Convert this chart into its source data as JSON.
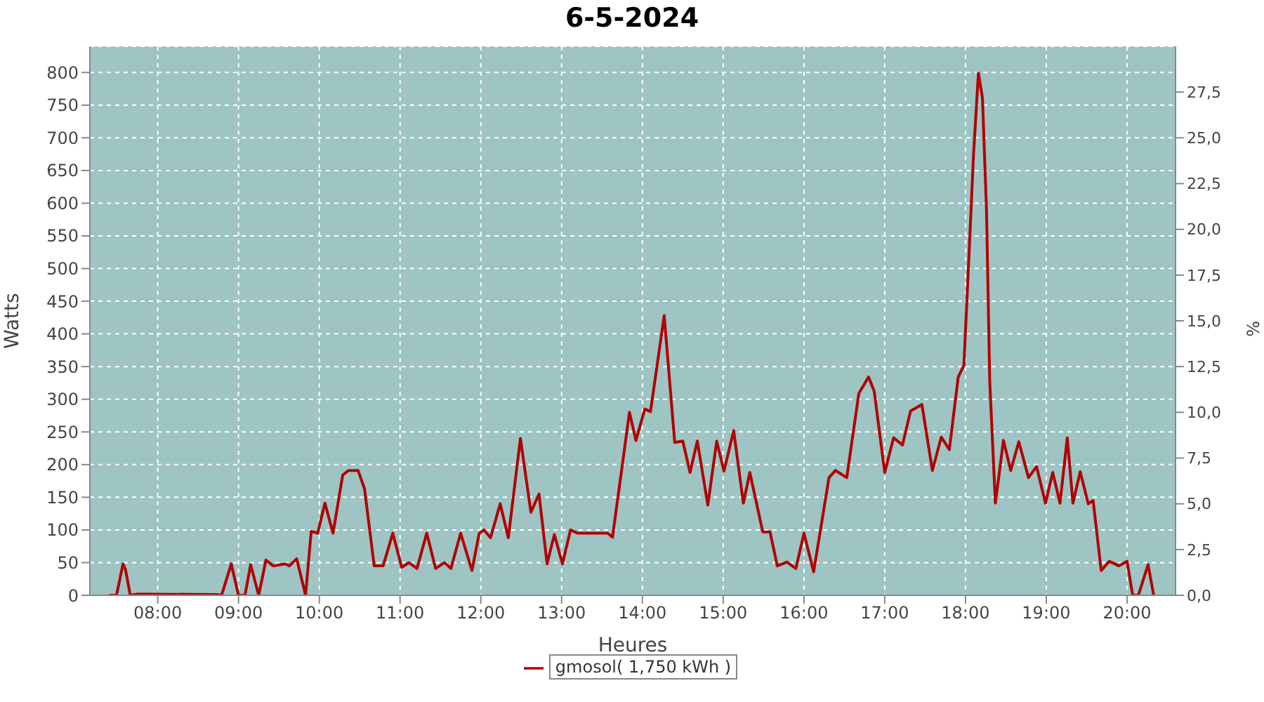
{
  "chart_data": {
    "type": "line",
    "title": "6-5-2024",
    "xlabel": "Heures",
    "ylabel": "Watts",
    "y2label": "%",
    "x": [
      7.4,
      7.49,
      7.57,
      7.6,
      7.66,
      7.75,
      8.74,
      8.79,
      8.91,
      9.0,
      9.08,
      9.15,
      9.25,
      9.34,
      9.43,
      9.58,
      9.63,
      9.72,
      9.83,
      9.9,
      9.98,
      10.07,
      10.17,
      10.29,
      10.36,
      10.48,
      10.56,
      10.68,
      10.79,
      10.91,
      11.02,
      11.11,
      11.21,
      11.33,
      11.44,
      11.55,
      11.63,
      11.75,
      11.89,
      11.98,
      12.04,
      12.12,
      12.24,
      12.34,
      12.49,
      12.62,
      12.72,
      12.82,
      12.91,
      13.01,
      13.11,
      13.2,
      13.57,
      13.63,
      13.84,
      13.92,
      14.03,
      14.1,
      14.27,
      14.4,
      14.5,
      14.59,
      14.68,
      14.81,
      14.92,
      15.01,
      15.13,
      15.25,
      15.33,
      15.49,
      15.58,
      15.67,
      15.79,
      15.9,
      16.0,
      16.12,
      16.31,
      16.39,
      16.53,
      16.68,
      16.8,
      16.87,
      17.0,
      17.11,
      17.22,
      17.32,
      17.46,
      17.59,
      17.7,
      17.8,
      17.91,
      17.98,
      18.04,
      18.1,
      18.16,
      18.21,
      18.26,
      18.3,
      18.37,
      18.47,
      18.56,
      18.66,
      18.78,
      18.88,
      18.99,
      19.08,
      19.17,
      19.26,
      19.33,
      19.42,
      19.52,
      19.58,
      19.68,
      19.78,
      19.9,
      20.0,
      20.07,
      20.14,
      20.26,
      20.33
    ],
    "series": [
      {
        "name": "gmosol( 1,750 kWh )",
        "color": "#b00000",
        "values": [
          0,
          0,
          48,
          40,
          0,
          2,
          1,
          0,
          48,
          0,
          0,
          47,
          0,
          54,
          45,
          48,
          45,
          56,
          0,
          98,
          95,
          141,
          95,
          184,
          191,
          191,
          163,
          45,
          45,
          95,
          43,
          50,
          41,
          95,
          41,
          50,
          41,
          95,
          38,
          95,
          100,
          88,
          140,
          88,
          240,
          127,
          155,
          48,
          93,
          48,
          100,
          95,
          95,
          89,
          280,
          237,
          285,
          281,
          428,
          234,
          236,
          188,
          236,
          138,
          236,
          190,
          252,
          141,
          188,
          97,
          97,
          45,
          51,
          41,
          95,
          36,
          180,
          191,
          180,
          309,
          334,
          312,
          188,
          241,
          230,
          282,
          292,
          191,
          242,
          223,
          334,
          352,
          512,
          676,
          799,
          761,
          590,
          327,
          141,
          237,
          191,
          235,
          180,
          197,
          141,
          188,
          141,
          241,
          141,
          189,
          140,
          145,
          38,
          52,
          45,
          52,
          0,
          0,
          47,
          0
        ]
      }
    ],
    "xlim": [
      7.16,
      20.6
    ],
    "xticks": [
      {
        "value": 8,
        "label": "08:00"
      },
      {
        "value": 9,
        "label": "09:00"
      },
      {
        "value": 10,
        "label": "10:00"
      },
      {
        "value": 11,
        "label": "11:00"
      },
      {
        "value": 12,
        "label": "12:00"
      },
      {
        "value": 13,
        "label": "13:00"
      },
      {
        "value": 14,
        "label": "14:00"
      },
      {
        "value": 15,
        "label": "15:00"
      },
      {
        "value": 16,
        "label": "16:00"
      },
      {
        "value": 17,
        "label": "17:00"
      },
      {
        "value": 18,
        "label": "18:00"
      },
      {
        "value": 19,
        "label": "19:00"
      },
      {
        "value": 20,
        "label": "20:00"
      }
    ],
    "ylim": [
      0,
      840
    ],
    "yticks": [
      0,
      50,
      100,
      150,
      200,
      250,
      300,
      350,
      400,
      450,
      500,
      550,
      600,
      650,
      700,
      750,
      800
    ],
    "y2lim": [
      0,
      30
    ],
    "y2ticks": [
      {
        "value": 0,
        "label": "0,0"
      },
      {
        "value": 2.5,
        "label": "2,5"
      },
      {
        "value": 5,
        "label": "5,0"
      },
      {
        "value": 7.5,
        "label": "7,5"
      },
      {
        "value": 10,
        "label": "10,0"
      },
      {
        "value": 12.5,
        "label": "12,5"
      },
      {
        "value": 15,
        "label": "15,0"
      },
      {
        "value": 17.5,
        "label": "17,5"
      },
      {
        "value": 20,
        "label": "20,0"
      },
      {
        "value": 22.5,
        "label": "22,5"
      },
      {
        "value": 25,
        "label": "25,0"
      },
      {
        "value": 27.5,
        "label": "27,5"
      }
    ],
    "grid": true,
    "legend": "bottom",
    "marker": "none",
    "line_style": "solid"
  }
}
